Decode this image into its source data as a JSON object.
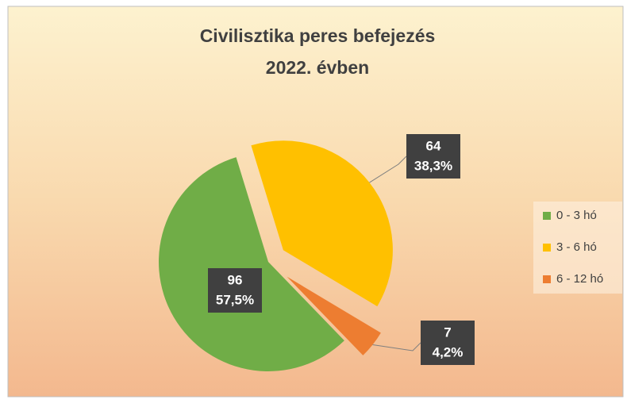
{
  "chart_data": {
    "type": "pie",
    "title": [
      "Civilisztika peres befejezés",
      "2022. évben"
    ],
    "categories": [
      "0 - 3 hó",
      "3 - 6 hó",
      "6 - 12 hó"
    ],
    "values": [
      96,
      64,
      7
    ],
    "percent_labels": [
      "57,5%",
      "38,3%",
      "4,2%"
    ],
    "colors": [
      "#70ad47",
      "#ffc000",
      "#ed7d31"
    ],
    "legend": "right"
  }
}
